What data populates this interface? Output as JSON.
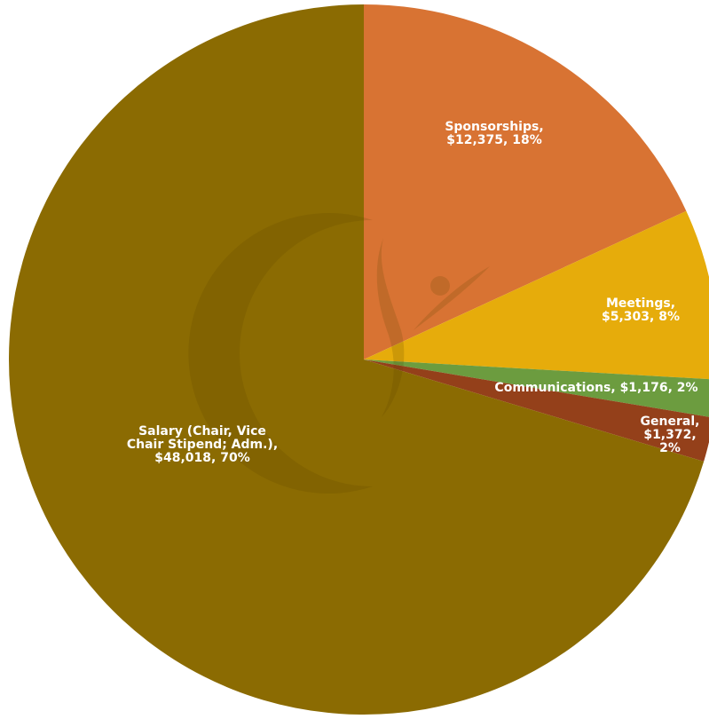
{
  "chart_data": {
    "type": "pie",
    "title": "",
    "start_angle_deg": 0,
    "direction": "clockwise",
    "slices": [
      {
        "name": "Sponsorships",
        "value": 12375,
        "percent": 18,
        "color": "#D87333",
        "label_lines": [
          "Sponsorships,",
          "$12,375, 18%"
        ]
      },
      {
        "name": "Meetings",
        "value": 5303,
        "percent": 8,
        "color": "#E6AC0B",
        "label_lines": [
          "Meetings,",
          "$5,303, 8%"
        ]
      },
      {
        "name": "Communications",
        "value": 1176,
        "percent": 2,
        "color": "#6C9C3F",
        "label_lines": [
          "Communications, $1,176, 2%"
        ]
      },
      {
        "name": "General",
        "value": 1372,
        "percent": 2,
        "color": "#94401A",
        "label_lines": [
          "General,",
          "$1,372,",
          "2%"
        ]
      },
      {
        "name": "Salary (Chair, Vice Chair Stipend; Adm.)",
        "value": 48018,
        "percent": 70,
        "color": "#8B6B02",
        "label_lines": [
          "Salary (Chair, Vice",
          "Chair Stipend; Adm.),",
          "$48,018, 70%"
        ]
      }
    ]
  }
}
